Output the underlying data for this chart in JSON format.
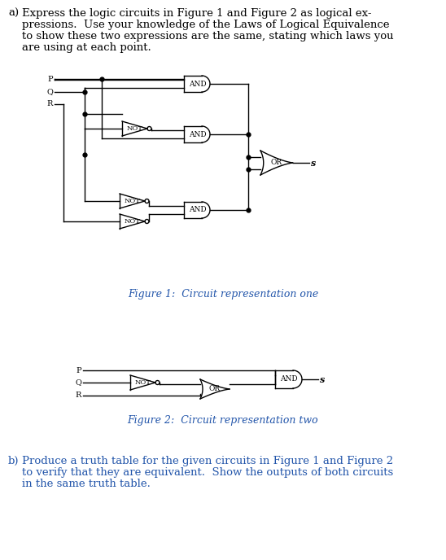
{
  "bg_color": "#ffffff",
  "text_color": "#000000",
  "blue_color": "#2255aa",
  "fig_width": 5.48,
  "fig_height": 6.88,
  "fig1_caption": "Figure 1:  Circuit representation one",
  "fig2_caption": "Figure 2:  Circuit representation two",
  "part_a_line1": "a) Express the logic circuits in Figure 1 and Figure 2 as logical ex-",
  "part_a_line2": "    pressions.  Use your knowledge of the Laws of Logical Equivalence",
  "part_a_line3": "    to show these two expressions are the same, stating which laws you",
  "part_a_line4": "    are using at each point.",
  "part_b_line1": "b) Produce a truth table for the given circuits in Figure 1 and Figure 2",
  "part_b_line2": "    to verify that they are equivalent.  Show the outputs of both circuits",
  "part_b_line3": "    in the same truth table."
}
